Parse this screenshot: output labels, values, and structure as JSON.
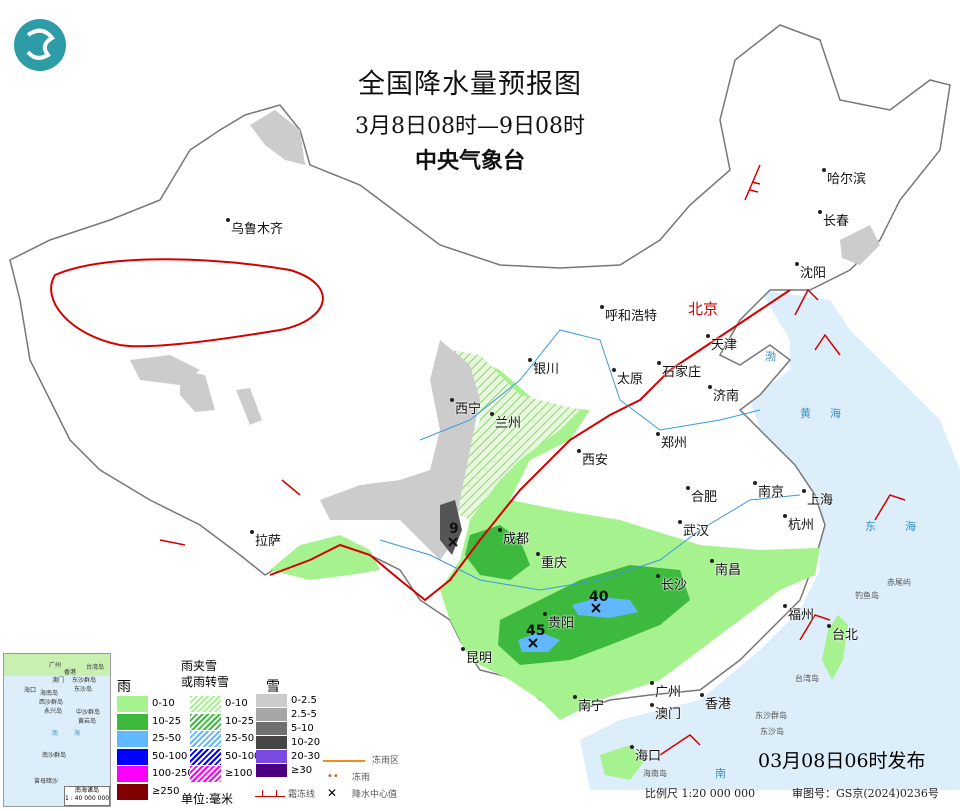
{
  "header": {
    "title": "全国降水量预报图",
    "period": "3月8日08时—9日08时",
    "agency": "中央气象台"
  },
  "cities": {
    "wulumuqi": "乌鲁木齐",
    "haerbin": "哈尔滨",
    "changchun": "长春",
    "shenyang": "沈阳",
    "beijing": "北京",
    "tianjin": "天津",
    "huhehaote": "呼和浩特",
    "yinchuan": "银川",
    "taiyuan": "太原",
    "shijiazhuang": "石家庄",
    "jinan": "济南",
    "xining": "西宁",
    "lanzhou": "兰州",
    "zhengzhou": "郑州",
    "xian": "西安",
    "hefei": "合肥",
    "nanjing": "南京",
    "shanghai": "上海",
    "hangzhou": "杭州",
    "lasa": "拉萨",
    "chengdu": "成都",
    "wuhan": "武汉",
    "chongqing": "重庆",
    "nanchang": "南昌",
    "changsha": "长沙",
    "guiyang": "贵阳",
    "fuzhou": "福州",
    "taibei": "台北",
    "kunming": "昆明",
    "nanning": "南宁",
    "guangzhou": "广州",
    "aomen": "澳门",
    "xianggang": "香港",
    "haikou": "海口"
  },
  "places": {
    "taiwan_island": "台湾岛",
    "dongsha_islands": "东沙群岛",
    "dongsha_island": "东沙岛",
    "diaoyu": "钓鱼岛",
    "chiwei": "赤尾屿",
    "hainan_island": "海南岛"
  },
  "seas": {
    "bohai": "渤",
    "huanghai": "黄",
    "donghai": "东",
    "hai": "海",
    "nan": "南"
  },
  "precip_centers": [
    {
      "label": "9"
    },
    {
      "label": "40"
    },
    {
      "label": "45"
    }
  ],
  "legend": {
    "rain_title": "雨",
    "mixed_title_1": "雨夹雪",
    "mixed_title_2": "或雨转雪",
    "snow_title": "雪",
    "rain": [
      {
        "label": "0-10",
        "color": "#a6f28f"
      },
      {
        "label": "10-25",
        "color": "#3dba3d"
      },
      {
        "label": "25-50",
        "color": "#61b8ff"
      },
      {
        "label": "50-100",
        "color": "#0000ff"
      },
      {
        "label": "100-250",
        "color": "#fa00fa"
      },
      {
        "label": "≥250",
        "color": "#800000"
      }
    ],
    "mixed": [
      {
        "label": "0-10",
        "color": "#a6f28f"
      },
      {
        "label": "10-25",
        "color": "#3dba3d"
      },
      {
        "label": "25-50",
        "color": "#61b8ff"
      },
      {
        "label": "50-100",
        "color": "#0000ff"
      },
      {
        "label": "≥100",
        "color": "#fa00fa"
      }
    ],
    "snow": [
      {
        "label": "0-2.5",
        "color": "#cccccc"
      },
      {
        "label": "2.5-5",
        "color": "#a6a6a6"
      },
      {
        "label": "5-10",
        "color": "#707070"
      },
      {
        "label": "10-20",
        "color": "#464646"
      },
      {
        "label": "20-30",
        "color": "#7a4be0"
      },
      {
        "label": "≥30",
        "color": "#4b0082"
      }
    ],
    "unit": "单位:毫米",
    "freezing_rain_zone": "冻雨区",
    "freezing_rain": "冻雨",
    "freezing_line": "霜冻线",
    "precip_center": "降水中心值"
  },
  "inset": {
    "title": "南海诸岛",
    "scale": "1 : 40 000 000",
    "labels": [
      "广州",
      "香港",
      "澳门",
      "台湾岛",
      "东沙群岛",
      "东沙岛",
      "海口",
      "海南岛",
      "西沙群岛",
      "永兴岛",
      "中沙群岛",
      "黄岩岛",
      "南",
      "海",
      "南沙群岛",
      "曾母暗沙"
    ]
  },
  "footer": {
    "issued": "03月08日06时发布",
    "scale": "比例尺 1:20 000 000",
    "permit": "审图号：GS京(2024)0236号"
  },
  "colors": {
    "sea": "#dceefa",
    "border": "#666666",
    "freezing_line": "#d40000",
    "frozen_rain_zone": "#f08c1e",
    "rivers": "#3a9bd5"
  }
}
